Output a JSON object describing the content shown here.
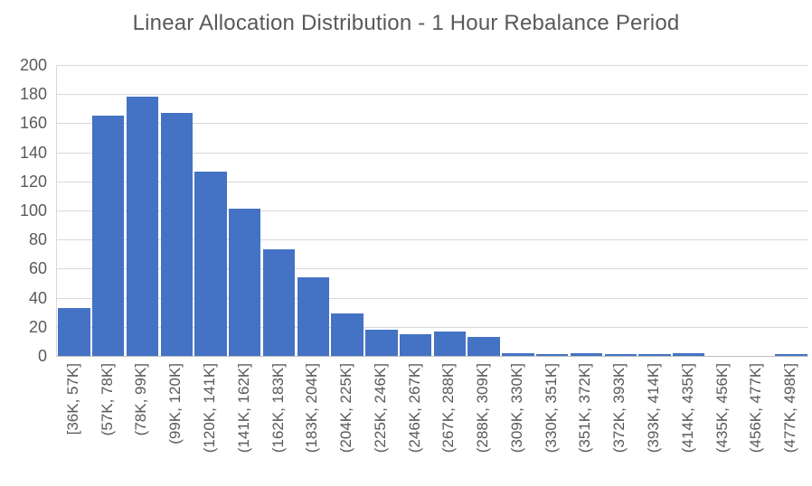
{
  "title": "Linear Allocation Distribution - 1 Hour Rebalance Period",
  "chart_data": {
    "type": "bar",
    "subtype": "histogram",
    "title": "Linear Allocation Distribution - 1 Hour Rebalance Period",
    "categories": [
      "[36K, 57K]",
      "(57K, 78K]",
      "(78K, 99K]",
      "(99K, 120K]",
      "(120K, 141K]",
      "(141K, 162K]",
      "(162K, 183K]",
      "(183K, 204K]",
      "(204K, 225K]",
      "(225K, 246K]",
      "(246K, 267K]",
      "(267K, 288K]",
      "(288K, 309K]",
      "(309K, 330K]",
      "(330K, 351K]",
      "(351K, 372K]",
      "(372K, 393K]",
      "(393K, 414K]",
      "(414K, 435K]",
      "(435K, 456K]",
      "(456K, 477K]",
      "(477K, 498K]"
    ],
    "values": [
      33,
      165,
      178,
      167,
      127,
      101,
      73,
      54,
      29,
      18,
      15,
      17,
      13,
      2,
      1,
      2,
      1,
      1,
      2,
      0,
      0,
      1
    ],
    "xlabel": "",
    "ylabel": "",
    "ylim": [
      0,
      200
    ],
    "ytick_step": 20,
    "yticks": [
      0,
      20,
      40,
      60,
      80,
      100,
      120,
      140,
      160,
      180,
      200
    ],
    "grid": true,
    "legend": false,
    "bar_color": "#4472C4",
    "gridline_color": "#d9d9d9",
    "axis_line_color": "#bfbfbf",
    "text_color": "#595959",
    "x_labels_rotation_deg": -90
  }
}
